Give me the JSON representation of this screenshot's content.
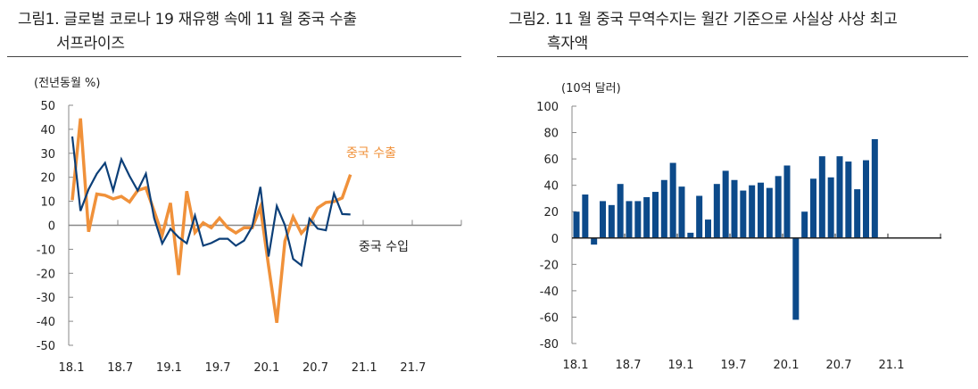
{
  "figure1": {
    "title_line1": "그림1. 글로벌 코로나 19 재유행 속에 11 월 중국 수출",
    "title_line2": "서프라이즈",
    "unit": "(전년동월 %)"
  },
  "figure2": {
    "title_line1": "그림2. 11 월 중국 무역수지는 월간 기준으로 사실상 사상 최고",
    "title_line2": "흑자액",
    "unit": "(10억 달러)"
  },
  "colors": {
    "export": "#f0913a",
    "import": "#0c3f78",
    "bar": "#0c4a8a",
    "axis": "#888888"
  },
  "chart_data": [
    {
      "type": "line",
      "title": "그림1. 글로벌 코로나 19 재유행 속에 11 월 중국 수출 서프라이즈",
      "ylabel": "(전년동월 %)",
      "ylim": [
        -50,
        50
      ],
      "yticks": [
        "50",
        "40",
        "30",
        "20",
        "10",
        "0",
        "-10",
        "-20",
        "-30",
        "-40",
        "-50"
      ],
      "ytick_values": [
        50,
        40,
        30,
        20,
        10,
        0,
        -10,
        -20,
        -30,
        -40,
        -50
      ],
      "xticks": [
        "18.1",
        "18.7",
        "19.1",
        "19.7",
        "20.1",
        "20.7",
        "21.1",
        "21.7"
      ],
      "x_start": "18.1",
      "months_total": 49,
      "series": [
        {
          "name": "중국 수출",
          "color": "#f0913a",
          "values": [
            10.5,
            44.5,
            -2.7,
            13,
            12.5,
            11,
            12,
            9.7,
            14.5,
            15.6,
            6,
            -4,
            9.3,
            -20.7,
            14.2,
            -3,
            1,
            -1,
            3,
            -1,
            -3.2,
            -1,
            -1,
            7.6,
            -17,
            -40.6,
            -6.6,
            3.5,
            -3.3,
            0.5,
            7.2,
            9.5,
            9.9,
            11.4,
            21.1
          ]
        },
        {
          "name": "중국 수입",
          "color": "#0c3f78",
          "values": [
            37,
            6,
            15,
            21.5,
            26,
            14.5,
            27.5,
            20.5,
            14.5,
            21.5,
            3,
            -7.6,
            -1.5,
            -5,
            -7.5,
            4,
            -8.5,
            -7.4,
            -5.6,
            -5.6,
            -8.5,
            -6.4,
            -0.5,
            16,
            -13,
            8,
            0,
            -14,
            -16.7,
            2.7,
            -1.4,
            -2.1,
            13.2,
            4.7,
            4.5
          ]
        }
      ]
    },
    {
      "type": "bar",
      "title": "그림2. 11 월 중국 무역수지는 월간 기준으로 사실상 사상 최고 흑자액",
      "ylabel": "(10억 달러)",
      "ylim": [
        -80,
        100
      ],
      "yticks": [
        "100",
        "80",
        "60",
        "40",
        "20",
        "0",
        "-20",
        "-40",
        "-60",
        "-80"
      ],
      "ytick_values": [
        100,
        80,
        60,
        40,
        20,
        0,
        -20,
        -40,
        -60,
        -80
      ],
      "xticks": [
        "18.1",
        "18.7",
        "19.1",
        "19.7",
        "20.1",
        "20.7",
        "21.1"
      ],
      "x_start": "18.1",
      "months_total": 42,
      "values": [
        20,
        33,
        -5,
        28,
        25,
        41,
        28,
        28,
        31,
        35,
        44,
        57,
        39,
        4,
        32,
        14,
        41,
        51,
        44,
        36,
        40,
        42,
        38,
        47,
        55,
        -62,
        20,
        45,
        62,
        46,
        62,
        58,
        37,
        59,
        75
      ]
    }
  ]
}
